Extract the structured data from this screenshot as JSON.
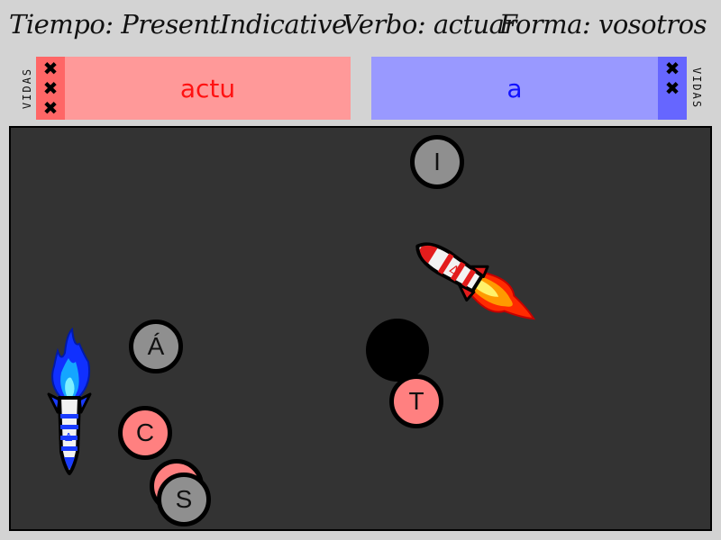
{
  "header": {
    "tiempo": "Tiempo: PresentIndicative",
    "verbo": "Verbo: actuar",
    "forma": "Forma: vosotros"
  },
  "player1": {
    "answer": "actu",
    "lives_label": "VIDAS",
    "lives": [
      "✖",
      "✖",
      "✖"
    ],
    "color": "#ff9999"
  },
  "player2": {
    "answer": "a",
    "lives_label": "VIDAS",
    "lives": [
      "✖",
      "✖"
    ],
    "color": "#9999ff"
  },
  "letters": [
    {
      "id": "I",
      "label": "I",
      "style": "grey"
    },
    {
      "id": "A_acute",
      "label": "Á",
      "style": "grey"
    },
    {
      "id": "C",
      "label": "C",
      "style": "red"
    },
    {
      "id": "T",
      "label": "T",
      "style": "red"
    },
    {
      "id": "S_under",
      "label": "",
      "style": "red"
    },
    {
      "id": "S",
      "label": "S",
      "style": "grey"
    }
  ],
  "ships": {
    "red_ship_glyph": "Δ",
    "blue_ship_glyph": "Δ"
  }
}
